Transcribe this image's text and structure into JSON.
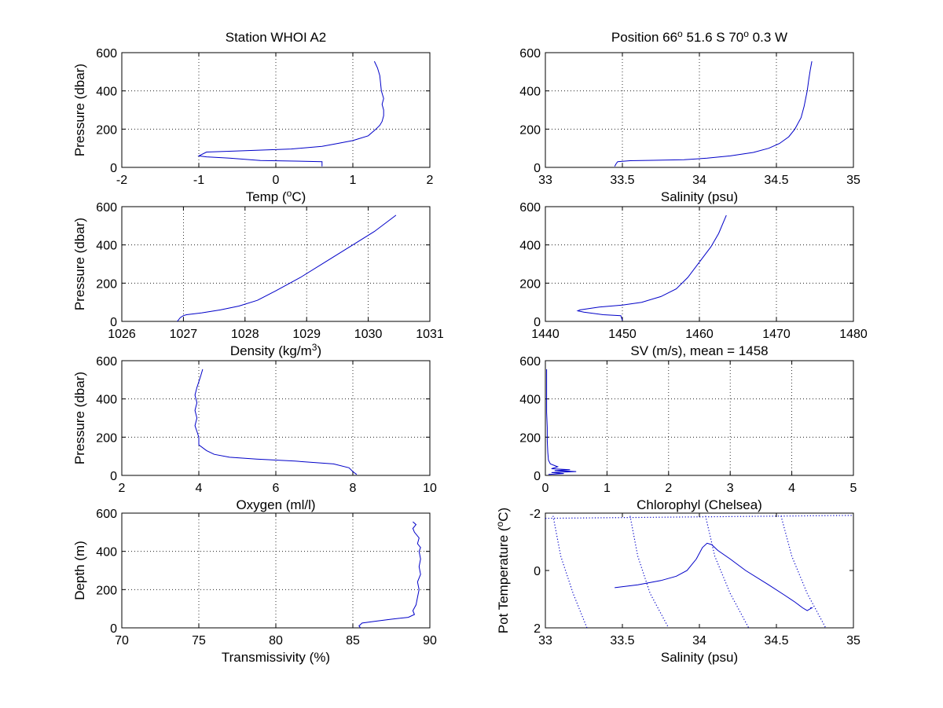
{
  "figure": {
    "background": "#ffffff",
    "line_color": "#0000c8",
    "grid_color": "#000000"
  },
  "chart_data": [
    {
      "id": "temp",
      "type": "line",
      "title": "Station  WHOI A2",
      "xlabel_parts": [
        "Temp (",
        "o",
        "C)"
      ],
      "ylabel": "Pressure (dbar)",
      "xlim": [
        -2,
        2
      ],
      "ylim": [
        600,
        0
      ],
      "xticks": [
        -2,
        -1,
        0,
        1,
        2
      ],
      "xtick_labels": [
        "-2",
        "-1",
        "0",
        "1",
        "2"
      ],
      "yticks": [
        0,
        200,
        400,
        600
      ],
      "ytick_labels": [
        "0",
        "200",
        "400",
        "600"
      ],
      "grid": true,
      "series": [
        {
          "x": [
            0.6,
            0.6,
            -0.2,
            -0.6,
            -0.9,
            -1.0,
            -0.9,
            -0.5,
            0.2,
            0.6,
            0.8,
            1.0,
            1.2,
            1.3,
            1.35,
            1.38,
            1.4,
            1.4,
            1.38,
            1.4,
            1.37,
            1.36,
            1.35,
            1.32,
            1.28
          ],
          "y": [
            5,
            30,
            36,
            48,
            55,
            60,
            80,
            86,
            96,
            110,
            125,
            140,
            165,
            200,
            220,
            240,
            270,
            300,
            330,
            360,
            400,
            440,
            480,
            520,
            555
          ]
        }
      ]
    },
    {
      "id": "salinity",
      "type": "line",
      "title_parts": [
        "Position 66",
        "o",
        " 51.6 S 70",
        "o",
        "  0.3 W"
      ],
      "xlabel": "Salinity (psu)",
      "ylabel": "",
      "xlim": [
        33,
        35
      ],
      "ylim": [
        600,
        0
      ],
      "xticks": [
        33,
        33.5,
        34,
        34.5,
        35
      ],
      "xtick_labels": [
        "33",
        "33.5",
        "34",
        "34.5",
        "35"
      ],
      "yticks": [
        0,
        200,
        400,
        600
      ],
      "ytick_labels": [
        "0",
        "200",
        "400",
        "600"
      ],
      "grid": true,
      "series": [
        {
          "x": [
            33.45,
            33.46,
            33.47,
            33.55,
            33.7,
            33.9,
            34.05,
            34.2,
            34.35,
            34.45,
            34.52,
            34.58,
            34.62,
            34.66,
            34.68,
            34.7,
            34.71,
            34.72,
            34.73
          ],
          "y": [
            5,
            20,
            30,
            35,
            37,
            40,
            48,
            60,
            78,
            100,
            125,
            160,
            200,
            260,
            320,
            400,
            460,
            510,
            555
          ]
        }
      ]
    },
    {
      "id": "density",
      "type": "line",
      "title": "",
      "xlabel_parts": [
        "Density (kg/m",
        "3",
        ")"
      ],
      "ylabel": "Pressure (dbar)",
      "xlim": [
        1026,
        1031
      ],
      "ylim": [
        600,
        0
      ],
      "xticks": [
        1026,
        1027,
        1028,
        1029,
        1030,
        1031
      ],
      "xtick_labels": [
        "1026",
        "1027",
        "1028",
        "1029",
        "1030",
        "1031"
      ],
      "yticks": [
        0,
        200,
        400,
        600
      ],
      "ytick_labels": [
        "0",
        "200",
        "400",
        "600"
      ],
      "grid": true,
      "series": [
        {
          "x": [
            1026.9,
            1026.95,
            1027.0,
            1027.05,
            1027.3,
            1027.6,
            1027.9,
            1028.2,
            1028.5,
            1028.9,
            1029.3,
            1029.7,
            1030.1,
            1030.45
          ],
          "y": [
            0,
            20,
            30,
            35,
            45,
            60,
            80,
            110,
            160,
            230,
            310,
            390,
            470,
            555
          ]
        }
      ]
    },
    {
      "id": "sound-velocity",
      "type": "line",
      "title": "",
      "xlabel": "SV (m/s), mean = 1458",
      "ylabel": "",
      "xlim": [
        1440,
        1480
      ],
      "ylim": [
        600,
        0
      ],
      "xticks": [
        1440,
        1450,
        1460,
        1470,
        1480
      ],
      "xtick_labels": [
        "1440",
        "1450",
        "1460",
        "1470",
        "1480"
      ],
      "yticks": [
        0,
        200,
        400,
        600
      ],
      "ytick_labels": [
        "0",
        "200",
        "400",
        "600"
      ],
      "grid": true,
      "series": [
        {
          "x": [
            1450.0,
            1449.8,
            1447.5,
            1445.0,
            1444.2,
            1444.5,
            1447.0,
            1450.0,
            1452.5,
            1455.0,
            1457.0,
            1458.5,
            1460.0,
            1461.5,
            1462.5,
            1463.5
          ],
          "y": [
            5,
            30,
            35,
            48,
            55,
            60,
            75,
            85,
            100,
            130,
            170,
            230,
            310,
            390,
            460,
            555
          ]
        }
      ]
    },
    {
      "id": "oxygen",
      "type": "line",
      "title": "",
      "xlabel": "Oxygen (ml/l)",
      "ylabel": "Pressure (dbar)",
      "xlim": [
        2,
        10
      ],
      "ylim": [
        600,
        0
      ],
      "xticks": [
        2,
        4,
        6,
        8,
        10
      ],
      "xtick_labels": [
        "2",
        "4",
        "6",
        "8",
        "10"
      ],
      "yticks": [
        0,
        200,
        400,
        600
      ],
      "ytick_labels": [
        "0",
        "200",
        "400",
        "600"
      ],
      "grid": true,
      "series": [
        {
          "x": [
            8.1,
            8.0,
            7.9,
            7.5,
            6.5,
            5.5,
            4.8,
            4.4,
            4.2,
            4.0,
            4.0,
            3.95,
            3.9,
            3.95,
            3.9,
            3.95,
            3.9,
            3.95,
            4.0,
            4.05,
            4.1
          ],
          "y": [
            5,
            20,
            40,
            60,
            75,
            85,
            95,
            110,
            130,
            160,
            200,
            230,
            260,
            300,
            340,
            380,
            420,
            460,
            490,
            520,
            555
          ]
        }
      ]
    },
    {
      "id": "chlorophyll",
      "type": "line",
      "title": "",
      "xlabel": "Chlorophyl (Chelsea)",
      "ylabel": "",
      "xlim": [
        0,
        5
      ],
      "ylim": [
        600,
        0
      ],
      "xticks": [
        0,
        1,
        2,
        3,
        4,
        5
      ],
      "xtick_labels": [
        "0",
        "1",
        "2",
        "3",
        "4",
        "5"
      ],
      "yticks": [
        0,
        200,
        400,
        600
      ],
      "ytick_labels": [
        "0",
        "200",
        "400",
        "600"
      ],
      "grid": true,
      "series": [
        {
          "x": [
            0.05,
            0.3,
            0.1,
            0.5,
            0.15,
            0.4,
            0.1,
            0.2,
            0.08,
            0.05,
            0.04,
            0.03,
            0.03,
            0.02,
            0.02,
            0.02,
            0.02
          ],
          "y": [
            5,
            10,
            15,
            20,
            25,
            30,
            35,
            45,
            60,
            80,
            120,
            180,
            250,
            330,
            400,
            480,
            555
          ]
        }
      ]
    },
    {
      "id": "transmissivity",
      "type": "line",
      "title": "",
      "xlabel": "Transmissivity (%)",
      "ylabel": "Depth (m)",
      "xlim": [
        70,
        90
      ],
      "ylim": [
        600,
        0
      ],
      "xticks": [
        70,
        75,
        80,
        85,
        90
      ],
      "xtick_labels": [
        "70",
        "75",
        "80",
        "85",
        "90"
      ],
      "yticks": [
        0,
        200,
        400,
        600
      ],
      "ytick_labels": [
        "0",
        "200",
        "400",
        "600"
      ],
      "grid": true,
      "series": [
        {
          "x": [
            85.5,
            85.4,
            85.6,
            86.5,
            87.5,
            88.6,
            89.0,
            88.9,
            89.1,
            89.2,
            89.3,
            89.2,
            89.4,
            89.3,
            89.4,
            89.3,
            89.4,
            89.2,
            89.3,
            89.0,
            88.9,
            89.1,
            88.9
          ],
          "y": [
            0,
            10,
            25,
            35,
            45,
            55,
            70,
            90,
            120,
            160,
            200,
            240,
            280,
            320,
            360,
            400,
            420,
            440,
            470,
            500,
            520,
            540,
            555
          ]
        }
      ]
    },
    {
      "id": "ts-diagram",
      "type": "line",
      "title": "",
      "xlabel": "Salinity (psu)",
      "ylabel_parts": [
        "Pot Temperature (",
        "o",
        "C)"
      ],
      "xlim": [
        33,
        35
      ],
      "ylim": [
        -2,
        2
      ],
      "xticks": [
        33,
        33.5,
        34,
        34.5,
        35
      ],
      "xtick_labels": [
        "33",
        "33.5",
        "34",
        "34.5",
        "35"
      ],
      "yticks": [
        -2,
        0,
        2
      ],
      "ytick_labels": [
        "-2",
        "0",
        "2"
      ],
      "grid": false,
      "series": [
        {
          "name": "ts-profile",
          "style": "solid",
          "x": [
            33.45,
            33.6,
            33.75,
            33.85,
            33.92,
            33.98,
            34.02,
            34.05,
            34.08,
            34.12,
            34.2,
            34.3,
            34.45,
            34.55,
            34.62,
            34.67,
            34.7,
            34.73,
            34.72
          ],
          "y": [
            0.6,
            0.5,
            0.35,
            0.2,
            0.0,
            -0.4,
            -0.8,
            -0.95,
            -0.9,
            -0.7,
            -0.4,
            0.0,
            0.5,
            0.85,
            1.1,
            1.3,
            1.4,
            1.3,
            1.3
          ]
        },
        {
          "name": "freezing-line",
          "style": "dotted",
          "x": [
            33,
            35
          ],
          "y": [
            -1.82,
            -1.92
          ]
        },
        {
          "name": "isopycnal-1",
          "style": "dotted",
          "x": [
            33.05,
            33.1,
            33.18,
            33.27
          ],
          "y": [
            -1.9,
            -0.5,
            0.8,
            2.0
          ]
        },
        {
          "name": "isopycnal-2",
          "style": "dotted",
          "x": [
            33.55,
            33.6,
            33.68,
            33.8
          ],
          "y": [
            -1.9,
            -0.5,
            0.8,
            2.0
          ]
        },
        {
          "name": "isopycnal-3",
          "style": "dotted",
          "x": [
            34.04,
            34.1,
            34.2,
            34.32
          ],
          "y": [
            -1.9,
            -0.5,
            0.8,
            2.0
          ]
        },
        {
          "name": "isopycnal-4",
          "style": "dotted",
          "x": [
            34.53,
            34.6,
            34.7,
            34.82
          ],
          "y": [
            -1.9,
            -0.5,
            0.8,
            2.0
          ]
        }
      ]
    }
  ]
}
